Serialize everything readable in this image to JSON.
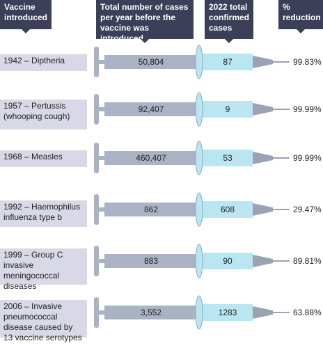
{
  "headers": {
    "vaccine": "Vaccine introduced",
    "before": "Total number of cases per year before the vaccine was introduced",
    "confirmed": "2022 total confirmed cases",
    "reduction": "% reduction"
  },
  "colors": {
    "header_bg": "#3b3f57",
    "label_bg": "#d8d8e6",
    "barrel": "#a9b3c3",
    "liquid": "#b9e6f0",
    "needle": "#9aa3b2"
  },
  "chart_data": {
    "type": "table",
    "columns": [
      "Vaccine introduced",
      "Total number of cases per year before the vaccine was introduced",
      "2022 total confirmed cases",
      "% reduction"
    ],
    "rows": [
      {
        "vaccine": "1942 – Diptheria",
        "before": "50,804",
        "confirmed": "87",
        "reduction": "99.83%"
      },
      {
        "vaccine": "1957 – Pertussis (whooping cough)",
        "before": "92,407",
        "confirmed": "9",
        "reduction": "99.99%"
      },
      {
        "vaccine": "1968 – Measles",
        "before": "460,407",
        "confirmed": "53",
        "reduction": "99.99%"
      },
      {
        "vaccine": "1992 – Haemophilus influenza type b",
        "before": "862",
        "confirmed": "608",
        "reduction": "29.47%"
      },
      {
        "vaccine": "1999 – Group C invasive meningococcal diseases",
        "before": "883",
        "confirmed": "90",
        "reduction": "89.81%"
      },
      {
        "vaccine": "2006 – Invasive pneumococcal disease caused by 13 vaccine serotypes",
        "before": "3,552",
        "confirmed": "1283",
        "reduction": "63.88%"
      }
    ]
  }
}
